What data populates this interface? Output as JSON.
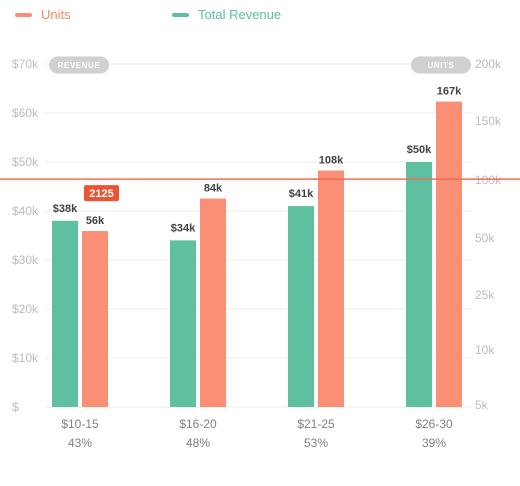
{
  "legend": {
    "units_label": "Units",
    "revenue_label": "Total Revenue"
  },
  "axis_badges": {
    "left": "REVENUE",
    "right": "UNITS"
  },
  "colors": {
    "units": "#fa8f75",
    "revenue": "#5ec0a0",
    "cursor": "#f06d55",
    "cursor_badge": "#ee5334",
    "badge_bg": "#cfd0d2",
    "grid": "#eeeeef"
  },
  "chart_data": {
    "type": "bar",
    "categories": [
      "$10-15",
      "$16-20",
      "$21-25",
      "$26-30"
    ],
    "category_percentages": [
      "43%",
      "48%",
      "53%",
      "39%"
    ],
    "series": [
      {
        "name": "Total Revenue",
        "axis": "left",
        "values": [
          38000,
          34000,
          41000,
          50000
        ],
        "data_labels": [
          "$38k",
          "$34k",
          "$41k",
          "$50k"
        ]
      },
      {
        "name": "Units",
        "axis": "right",
        "values": [
          56000,
          84000,
          108000,
          167000
        ],
        "data_labels": [
          "56k",
          "84k",
          "108k",
          "167k"
        ]
      }
    ],
    "left_axis": {
      "ticks": [
        0,
        10000,
        20000,
        30000,
        40000,
        50000,
        60000,
        70000
      ],
      "tick_labels": [
        "$",
        "$10k",
        "$20k",
        "$30k",
        "$40k",
        "$50k",
        "$60k",
        "$70k"
      ],
      "range": [
        0,
        70000
      ]
    },
    "right_axis": {
      "tick_labels": [
        "5k",
        "10k",
        "25k",
        "50k",
        "100k",
        "150k",
        "200k"
      ],
      "tick_values": [
        5000,
        10000,
        25000,
        50000,
        100000,
        150000,
        200000
      ]
    },
    "cursor": {
      "left_axis_value": 46500,
      "label": "2125"
    },
    "grid": true,
    "legend_position": "top-left"
  }
}
